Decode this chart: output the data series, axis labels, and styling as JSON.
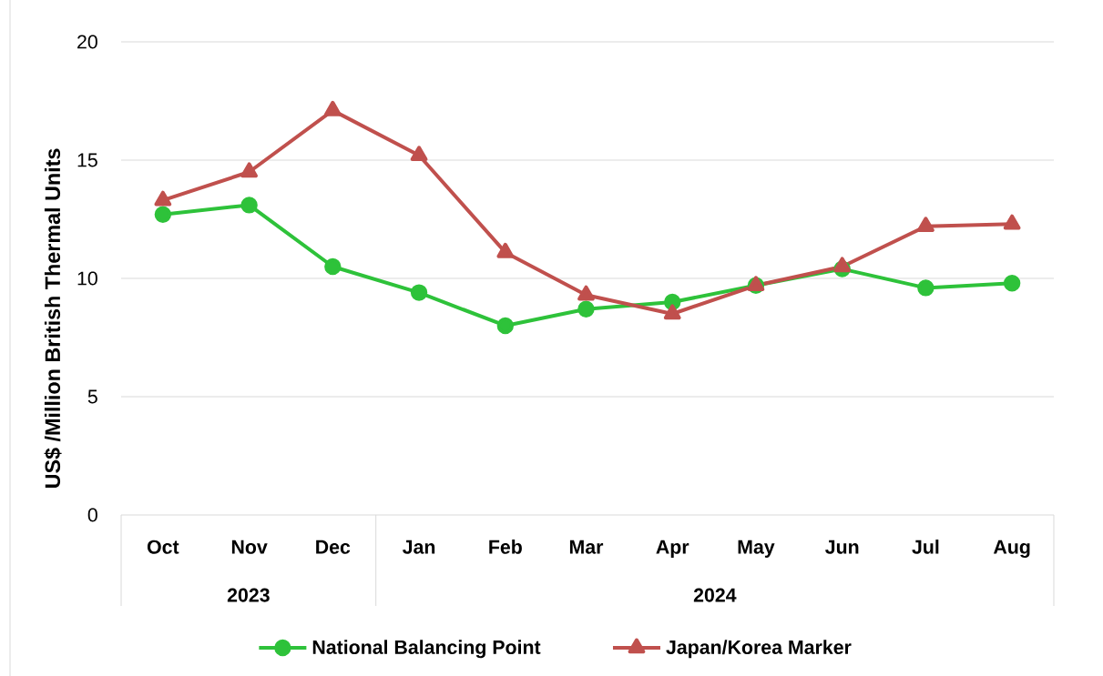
{
  "chart_data": {
    "type": "line",
    "ylabel": "US$ /Million British Thermal Units",
    "x": [
      "2023-10",
      "2023-11",
      "2023-12",
      "2024-01",
      "2024-02",
      "2024-03",
      "2024-04",
      "2024-05",
      "2024-06",
      "2024-07",
      "2024-08"
    ],
    "xlim": [
      "2023-09-16",
      "2024-08-16"
    ],
    "xticks": [
      {
        "value": "2023-10",
        "label": "Oct"
      },
      {
        "value": "2023-11",
        "label": "Nov"
      },
      {
        "value": "2023-12",
        "label": "Dec"
      },
      {
        "value": "2024-01",
        "label": "Jan"
      },
      {
        "value": "2024-02",
        "label": "Feb"
      },
      {
        "value": "2024-03",
        "label": "Mar"
      },
      {
        "value": "2024-04",
        "label": "Apr"
      },
      {
        "value": "2024-05",
        "label": "May"
      },
      {
        "value": "2024-06",
        "label": "Jun"
      },
      {
        "value": "2024-07",
        "label": "Jul"
      },
      {
        "value": "2024-08",
        "label": "Aug"
      }
    ],
    "ylim": [
      0,
      20
    ],
    "yticks": [
      0,
      5,
      10,
      15,
      20
    ],
    "grid": "y",
    "legend": "bottom",
    "line_style": "solid",
    "annotations": [
      "2023",
      "2024"
    ],
    "series": [
      {
        "name": "National Balancing Point",
        "color": "#2ec23a",
        "marker": "circle",
        "values": [
          12.7,
          13.1,
          10.5,
          9.4,
          8.0,
          8.7,
          9.0,
          9.7,
          10.4,
          9.6,
          9.8
        ]
      },
      {
        "name": "Japan/Korea Marker",
        "color": "#c0504d",
        "marker": "triangle",
        "values": [
          13.3,
          14.5,
          17.1,
          15.2,
          11.1,
          9.3,
          8.5,
          9.7,
          10.5,
          12.2,
          12.3
        ]
      }
    ]
  }
}
